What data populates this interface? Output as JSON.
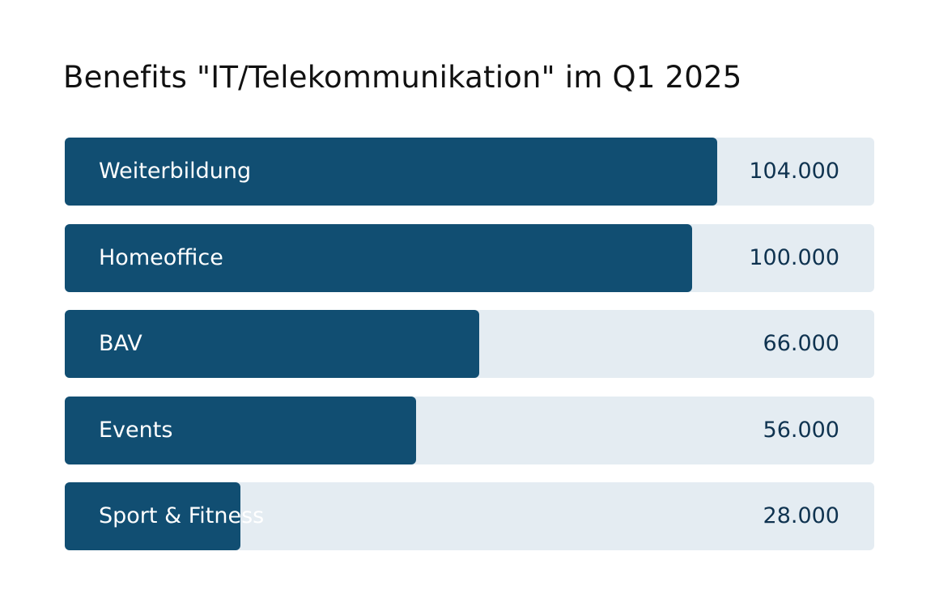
{
  "chart_data": {
    "type": "bar",
    "orientation": "horizontal",
    "title": "Benefits \"IT/Telekommunikation\" im Q1 2025",
    "categories": [
      "Weiterbildung",
      "Homeoffice",
      "BAV",
      "Events",
      "Sport & Fitness"
    ],
    "values": [
      104000,
      100000,
      66000,
      56000,
      28000
    ],
    "value_labels": [
      "104.000",
      "100.000",
      "66.000",
      "56.000",
      "28.000"
    ],
    "xlim": [
      0,
      129000
    ],
    "grid": false,
    "legend": "none",
    "colors": {
      "bar": "#114e72",
      "track": "#e4ecf2",
      "label_text": "#ffffff",
      "value_text": "#0f3350",
      "title_text": "#111111"
    }
  }
}
